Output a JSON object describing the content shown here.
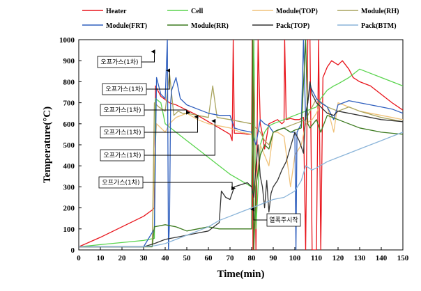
{
  "chart_data": {
    "type": "line",
    "xlabel": "Time(min)",
    "ylabel": "Temperature(°C)",
    "xlim": [
      0,
      150
    ],
    "ylim": [
      0,
      1000
    ],
    "xticks": [
      "0",
      "10",
      "20",
      "30",
      "40",
      "50",
      "60",
      "70",
      "80",
      "90",
      "100",
      "110",
      "120",
      "130",
      "140",
      "150"
    ],
    "yticks": [
      "0",
      "100",
      "200",
      "300",
      "400",
      "500",
      "600",
      "700",
      "800",
      "900",
      "1000"
    ],
    "legend_position": "top",
    "grid": false,
    "series": [
      {
        "name": "Heater",
        "color": "#e8141b",
        "x": [
          0,
          10,
          20,
          30,
          34,
          35,
          35.5,
          38,
          42,
          45,
          50,
          55,
          60,
          65,
          70,
          71,
          71.5,
          72,
          75,
          78,
          80,
          80.3,
          80.6,
          81,
          82,
          83,
          84,
          85,
          86,
          88,
          90,
          92,
          94,
          95,
          95.3,
          96,
          98,
          100,
          102,
          104,
          105,
          106,
          107,
          108,
          109,
          110,
          111,
          112,
          113,
          115,
          117,
          120,
          122,
          125,
          127,
          130,
          135,
          140,
          145,
          150
        ],
        "y": [
          15,
          60,
          110,
          160,
          190,
          200,
          780,
          730,
          700,
          690,
          665,
          640,
          610,
          580,
          550,
          520,
          1000,
          555,
          555,
          550,
          550,
          1000,
          0,
          1000,
          0,
          1000,
          600,
          550,
          480,
          600,
          610,
          620,
          600,
          610,
          1000,
          620,
          625,
          620,
          620,
          630,
          0,
          1000,
          1000,
          0,
          0,
          0,
          1000,
          0,
          820,
          870,
          900,
          880,
          900,
          860,
          820,
          800,
          780,
          740,
          700,
          665
        ]
      },
      {
        "name": "Cell",
        "color": "#59d44d",
        "x": [
          0,
          10,
          20,
          30,
          35,
          35.5,
          38,
          40,
          45,
          50,
          55,
          60,
          65,
          70,
          75,
          80,
          81,
          82,
          84,
          86,
          88,
          90,
          95,
          100,
          105,
          110,
          112,
          115,
          118,
          120,
          125,
          130,
          135,
          140,
          145,
          150
        ],
        "y": [
          15,
          25,
          35,
          45,
          55,
          720,
          700,
          600,
          560,
          520,
          480,
          440,
          400,
          360,
          330,
          300,
          1000,
          100,
          500,
          560,
          590,
          600,
          620,
          640,
          660,
          680,
          720,
          760,
          780,
          790,
          820,
          860,
          840,
          820,
          800,
          780
        ]
      },
      {
        "name": "Module(TOP)",
        "color": "#f0c27a",
        "x": [
          0,
          20,
          34,
          35,
          36,
          38,
          40,
          42,
          45,
          50,
          55,
          60,
          65,
          70,
          75,
          80,
          82,
          84,
          86,
          88,
          90,
          92,
          95,
          98,
          100,
          103,
          105,
          108,
          110,
          112,
          115,
          118,
          120,
          125,
          130,
          140,
          150
        ],
        "y": [
          15,
          15,
          15,
          450,
          600,
          580,
          560,
          600,
          630,
          650,
          620,
          600,
          590,
          580,
          560,
          550,
          300,
          500,
          450,
          400,
          560,
          560,
          540,
          300,
          450,
          500,
          600,
          620,
          650,
          700,
          680,
          560,
          700,
          680,
          660,
          640,
          620
        ]
      },
      {
        "name": "Module(RH)",
        "color": "#a9a45e",
        "x": [
          0,
          20,
          34,
          35,
          37,
          40,
          42,
          44,
          46,
          48,
          50,
          55,
          60,
          62,
          64,
          70,
          75,
          80,
          82,
          84,
          86,
          88,
          90,
          95,
          100,
          105,
          110,
          115,
          120,
          125,
          130,
          140,
          150
        ],
        "y": [
          15,
          15,
          15,
          700,
          680,
          660,
          840,
          640,
          660,
          650,
          650,
          640,
          630,
          780,
          630,
          620,
          610,
          600,
          580,
          560,
          520,
          500,
          560,
          580,
          600,
          620,
          720,
          680,
          660,
          680,
          660,
          630,
          610
        ]
      },
      {
        "name": "Module(FRT)",
        "color": "#2f5fbe",
        "x": [
          0,
          30,
          35,
          36,
          38,
          40,
          41,
          41.5,
          42,
          42.5,
          43,
          45,
          47,
          50,
          55,
          60,
          65,
          70,
          72,
          75,
          80,
          82,
          84,
          86,
          88,
          90,
          92,
          95,
          98,
          100,
          100.5,
          101,
          103,
          104,
          105,
          106,
          107,
          110,
          112,
          115,
          118,
          120,
          125,
          130,
          135,
          140,
          145,
          150
        ],
        "y": [
          15,
          15,
          100,
          820,
          740,
          720,
          1000,
          0,
          130,
          700,
          760,
          820,
          720,
          690,
          670,
          650,
          640,
          640,
          580,
          570,
          560,
          500,
          620,
          600,
          590,
          560,
          570,
          580,
          560,
          560,
          0,
          560,
          600,
          1000,
          620,
          700,
          780,
          720,
          700,
          680,
          620,
          690,
          710,
          700,
          690,
          680,
          670,
          650
        ]
      },
      {
        "name": "Module(RR)",
        "color": "#3c7a1f",
        "x": [
          0,
          20,
          34,
          35,
          40,
          45,
          50,
          55,
          60,
          65,
          70,
          75,
          80,
          80.5,
          81,
          82,
          84,
          86,
          88,
          90,
          92,
          95,
          98,
          100,
          103,
          105,
          106,
          107,
          110,
          112,
          115,
          120,
          125,
          130,
          140,
          150
        ],
        "y": [
          15,
          15,
          15,
          110,
          120,
          110,
          90,
          100,
          110,
          100,
          100,
          100,
          100,
          1000,
          0,
          300,
          450,
          500,
          480,
          560,
          570,
          580,
          560,
          570,
          580,
          1000,
          600,
          580,
          620,
          560,
          640,
          620,
          600,
          580,
          560,
          550
        ]
      },
      {
        "name": "Pack(TOP)",
        "color": "#333333",
        "x": [
          0,
          30,
          35,
          40,
          45,
          50,
          55,
          60,
          65,
          66,
          68,
          70,
          72,
          75,
          78,
          80,
          81,
          82,
          83,
          84,
          85,
          86,
          87,
          88,
          89,
          90,
          92,
          94,
          96,
          98,
          100,
          102,
          104,
          105,
          106,
          107,
          108,
          110,
          112,
          115,
          118,
          120,
          125,
          130,
          140,
          150
        ],
        "y": [
          15,
          15,
          30,
          50,
          60,
          70,
          80,
          90,
          130,
          280,
          250,
          240,
          300,
          310,
          320,
          300,
          250,
          400,
          500,
          350,
          300,
          200,
          330,
          180,
          270,
          300,
          330,
          380,
          420,
          490,
          560,
          520,
          460,
          650,
          700,
          800,
          740,
          700,
          680,
          650,
          640,
          660,
          650,
          640,
          620,
          610
        ]
      },
      {
        "name": "Pack(BTM)",
        "color": "#8ab4d9",
        "x": [
          0,
          30,
          35,
          40,
          45,
          50,
          55,
          60,
          65,
          70,
          75,
          80,
          85,
          90,
          95,
          100,
          103,
          105,
          108,
          110,
          115,
          120,
          125,
          130,
          135,
          140,
          145,
          150
        ],
        "y": [
          15,
          15,
          20,
          30,
          50,
          70,
          90,
          110,
          140,
          160,
          180,
          200,
          220,
          240,
          250,
          280,
          330,
          400,
          380,
          390,
          420,
          440,
          460,
          480,
          500,
          520,
          540,
          560
        ]
      }
    ],
    "annotations": [
      {
        "text": "오프가스(1차)",
        "x": 35,
        "y": 950
      },
      {
        "text": "오프가스(1차)",
        "x": 42,
        "y": 860
      },
      {
        "text": "오프가스(1차)",
        "x": 50,
        "y": 660
      },
      {
        "text": "오프가스(1차)",
        "x": 55,
        "y": 640
      },
      {
        "text": "오프가스(1차)",
        "x": 63,
        "y": 620
      },
      {
        "text": "오프가스(1차)",
        "x": 71,
        "y": 300
      },
      {
        "text": "열폭주시작",
        "x": 81,
        "y": 200
      }
    ]
  }
}
